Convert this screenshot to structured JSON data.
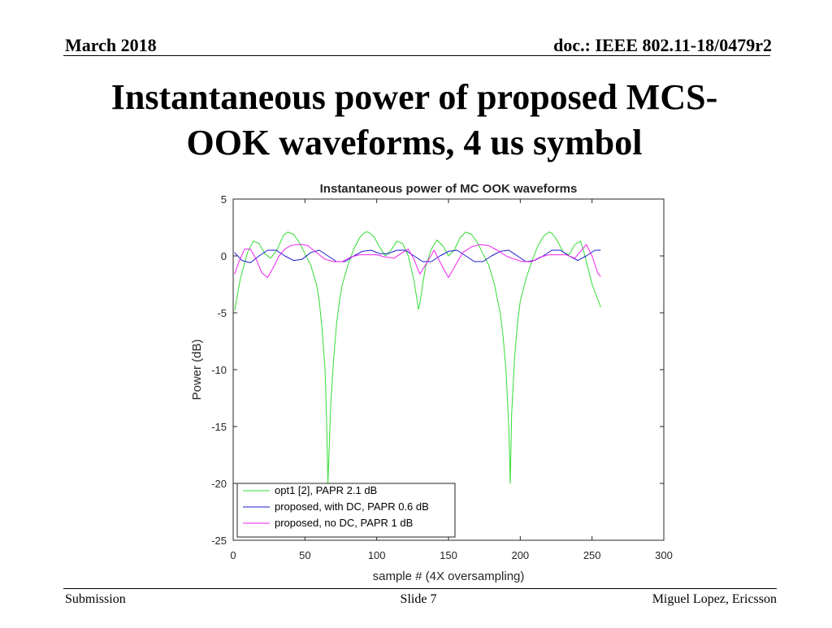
{
  "header": {
    "date": "March 2018",
    "doc": "doc.: IEEE 802.11-18/0479r2"
  },
  "slide": {
    "title_line1": "Instantaneous power of proposed MCS-",
    "title_line2": "OOK waveforms, 4 us symbol"
  },
  "footer": {
    "left": "Submission",
    "center": "Slide 7",
    "right": "Miguel Lopez, Ericsson"
  },
  "chart_data": {
    "type": "line",
    "title": "Instantaneous power of MC OOK waveforms",
    "xlabel": "sample # (4X oversampling)",
    "ylabel": "Power (dB)",
    "xlim": [
      0,
      300
    ],
    "ylim": [
      -25,
      5
    ],
    "xticks": [
      0,
      50,
      100,
      150,
      200,
      250,
      300
    ],
    "yticks": [
      5,
      0,
      -5,
      -10,
      -15,
      -20,
      -25
    ],
    "grid": false,
    "legend_position": "bottom-left",
    "series": [
      {
        "name": "opt1 [2], PAPR 2.1 dB",
        "color": "#33dd33",
        "x": [
          1,
          5,
          10,
          14,
          18,
          22,
          26,
          30,
          35,
          38,
          42,
          46,
          50,
          54,
          58,
          60,
          62,
          64,
          65,
          66,
          68,
          70,
          72,
          74,
          76,
          80,
          84,
          88,
          92,
          94,
          98,
          102,
          106,
          110,
          114,
          118,
          122,
          126,
          128,
          129,
          130,
          132,
          134,
          138,
          142,
          146,
          150,
          154,
          158,
          162,
          166,
          170,
          174,
          178,
          182,
          186,
          188,
          190,
          192,
          193,
          194,
          196,
          198,
          200,
          204,
          208,
          212,
          216,
          220,
          222,
          226,
          230,
          234,
          238,
          242,
          244,
          246,
          248,
          250,
          253,
          256
        ],
        "y": [
          -4.8,
          -2.0,
          0.3,
          1.3,
          1.1,
          0.2,
          -0.2,
          0.4,
          1.8,
          2.1,
          1.9,
          1.2,
          0.2,
          -0.8,
          -2.5,
          -4.0,
          -6.5,
          -10.0,
          -14.0,
          -20.0,
          -13.0,
          -9.0,
          -6.0,
          -4.0,
          -2.5,
          -0.8,
          0.6,
          1.6,
          2.1,
          2.1,
          1.7,
          0.8,
          0.0,
          0.5,
          1.3,
          1.1,
          0.0,
          -2.2,
          -3.8,
          -4.7,
          -4.2,
          -2.5,
          -1.0,
          0.6,
          1.4,
          0.9,
          0.0,
          0.5,
          1.6,
          2.1,
          1.9,
          1.2,
          0.2,
          -0.8,
          -2.5,
          -5.0,
          -7.0,
          -10.0,
          -15.0,
          -20.0,
          -14.0,
          -9.0,
          -6.0,
          -4.0,
          -2.0,
          -0.5,
          0.8,
          1.7,
          2.1,
          2.0,
          1.3,
          0.3,
          0.1,
          1.0,
          1.3,
          0.5,
          -0.5,
          -1.5,
          -2.5,
          -3.5,
          -4.5
        ]
      },
      {
        "name": "proposed, with DC, PAPR 0.6 dB",
        "color": "#1a1acc",
        "x": [
          1,
          6,
          12,
          18,
          24,
          30,
          36,
          42,
          48,
          54,
          60,
          66,
          72,
          78,
          84,
          90,
          96,
          102,
          108,
          114,
          120,
          126,
          132,
          138,
          144,
          150,
          156,
          162,
          168,
          174,
          180,
          186,
          192,
          198,
          204,
          210,
          216,
          222,
          228,
          234,
          240,
          246,
          252,
          256
        ],
        "y": [
          0.3,
          -0.4,
          -0.6,
          0.0,
          0.5,
          0.5,
          0.0,
          -0.4,
          -0.3,
          0.3,
          0.5,
          0.0,
          -0.5,
          -0.5,
          0.0,
          0.4,
          0.5,
          0.2,
          0.2,
          0.5,
          0.5,
          0.0,
          -0.5,
          -0.5,
          0.0,
          0.4,
          0.5,
          0.0,
          -0.5,
          -0.5,
          0.0,
          0.4,
          0.5,
          0.0,
          -0.5,
          -0.4,
          0.0,
          0.5,
          0.5,
          0.0,
          -0.4,
          0.0,
          0.5,
          0.5
        ]
      },
      {
        "name": "proposed, no DC, PAPR 1 dB",
        "color": "#ee22ee",
        "x": [
          1,
          4,
          8,
          12,
          16,
          20,
          24,
          28,
          32,
          36,
          40,
          44,
          48,
          52,
          56,
          60,
          64,
          70,
          76,
          82,
          88,
          94,
          100,
          106,
          112,
          118,
          122,
          126,
          130,
          134,
          140,
          146,
          150,
          154,
          160,
          166,
          172,
          178,
          184,
          190,
          196,
          202,
          208,
          214,
          220,
          226,
          232,
          238,
          242,
          246,
          250,
          254,
          256
        ],
        "y": [
          -1.6,
          -0.5,
          0.6,
          0.6,
          -0.3,
          -1.5,
          -1.9,
          -1.0,
          0.0,
          0.6,
          0.9,
          1.0,
          1.0,
          0.9,
          0.5,
          0.1,
          -0.3,
          -0.5,
          -0.5,
          -0.1,
          0.1,
          0.1,
          0.1,
          -0.1,
          -0.2,
          0.3,
          0.6,
          -0.3,
          -1.6,
          -0.8,
          0.5,
          -1.0,
          -1.9,
          -1.0,
          0.3,
          0.8,
          1.0,
          0.9,
          0.5,
          0.0,
          -0.3,
          -0.5,
          -0.5,
          -0.1,
          0.1,
          0.1,
          0.1,
          -0.2,
          0.4,
          1.0,
          0.0,
          -1.5,
          -1.8
        ]
      }
    ]
  }
}
